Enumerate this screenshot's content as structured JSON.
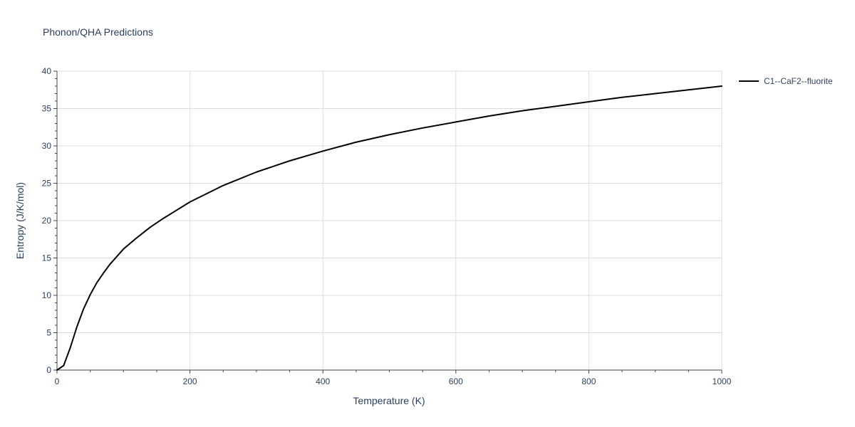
{
  "chart_data": {
    "type": "line",
    "title": "Phonon/QHA Predictions",
    "xlabel": "Temperature (K)",
    "ylabel": "Entropy (J/K/mol)",
    "xlim": [
      0,
      1000
    ],
    "ylim": [
      0,
      40
    ],
    "x_ticks": [
      0,
      200,
      400,
      600,
      800,
      1000
    ],
    "y_ticks": [
      0,
      5,
      10,
      15,
      20,
      25,
      30,
      35,
      40
    ],
    "grid": true,
    "legend_position": "top-right",
    "series": [
      {
        "name": "C1--CaF2--fluorite",
        "color": "#000000",
        "x": [
          0,
          10,
          20,
          30,
          40,
          50,
          60,
          70,
          80,
          90,
          100,
          120,
          140,
          160,
          180,
          200,
          250,
          300,
          350,
          400,
          450,
          500,
          550,
          600,
          650,
          700,
          750,
          800,
          850,
          900,
          950,
          1000
        ],
        "y": [
          0,
          0.6,
          3.0,
          5.8,
          8.2,
          10.1,
          11.7,
          13.0,
          14.2,
          15.2,
          16.2,
          17.7,
          19.1,
          20.3,
          21.4,
          22.5,
          24.7,
          26.5,
          28.0,
          29.3,
          30.5,
          31.5,
          32.4,
          33.2,
          34.0,
          34.7,
          35.3,
          35.9,
          36.5,
          37.0,
          37.5,
          38.0
        ]
      }
    ]
  }
}
